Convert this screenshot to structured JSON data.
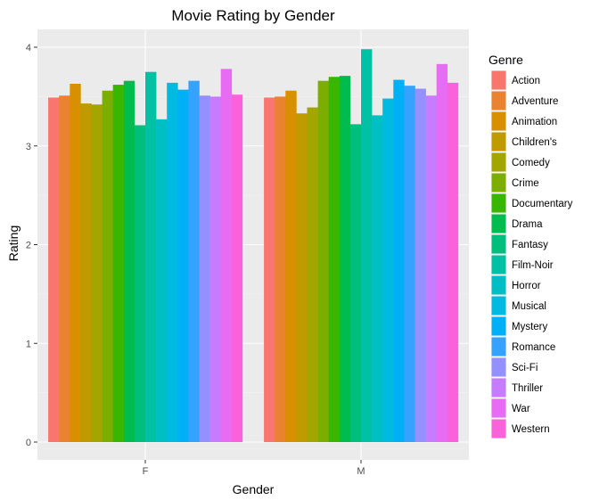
{
  "chart_data": {
    "type": "bar",
    "title": "Movie Rating by Gender",
    "xlabel": "Gender",
    "ylabel": "Rating",
    "categories": [
      "F",
      "M"
    ],
    "ylim": [
      0,
      4.2
    ],
    "yticks": [
      0,
      1,
      2,
      3,
      4
    ],
    "grid": true,
    "legend_title": "Genre",
    "legend_position": "right",
    "series": [
      {
        "name": "Action",
        "color": "#F8766D",
        "values": [
          3.49,
          3.49
        ]
      },
      {
        "name": "Adventure",
        "color": "#EA8331",
        "values": [
          3.51,
          3.5
        ]
      },
      {
        "name": "Animation",
        "color": "#D89000",
        "values": [
          3.63,
          3.56
        ]
      },
      {
        "name": "Children's",
        "color": "#C09B00",
        "values": [
          3.43,
          3.33
        ]
      },
      {
        "name": "Comedy",
        "color": "#A3A500",
        "values": [
          3.42,
          3.39
        ]
      },
      {
        "name": "Crime",
        "color": "#7CAE00",
        "values": [
          3.56,
          3.66
        ]
      },
      {
        "name": "Documentary",
        "color": "#39B600",
        "values": [
          3.62,
          3.7
        ]
      },
      {
        "name": "Drama",
        "color": "#00BB4E",
        "values": [
          3.66,
          3.71
        ]
      },
      {
        "name": "Fantasy",
        "color": "#00BF7D",
        "values": [
          3.21,
          3.22
        ]
      },
      {
        "name": "Film-Noir",
        "color": "#00C1A3",
        "values": [
          3.75,
          3.98
        ]
      },
      {
        "name": "Horror",
        "color": "#00BFC4",
        "values": [
          3.27,
          3.31
        ]
      },
      {
        "name": "Musical",
        "color": "#00BAE0",
        "values": [
          3.64,
          3.48
        ]
      },
      {
        "name": "Mystery",
        "color": "#00B0F6",
        "values": [
          3.57,
          3.67
        ]
      },
      {
        "name": "Romance",
        "color": "#35A2FF",
        "values": [
          3.66,
          3.61
        ]
      },
      {
        "name": "Sci-Fi",
        "color": "#9590FF",
        "values": [
          3.51,
          3.58
        ]
      },
      {
        "name": "Thriller",
        "color": "#C77CFF",
        "values": [
          3.5,
          3.51
        ]
      },
      {
        "name": "War",
        "color": "#E76BF3",
        "values": [
          3.78,
          3.83
        ]
      },
      {
        "name": "Western",
        "color": "#FA62DB",
        "values": [
          3.52,
          3.64
        ]
      }
    ]
  }
}
